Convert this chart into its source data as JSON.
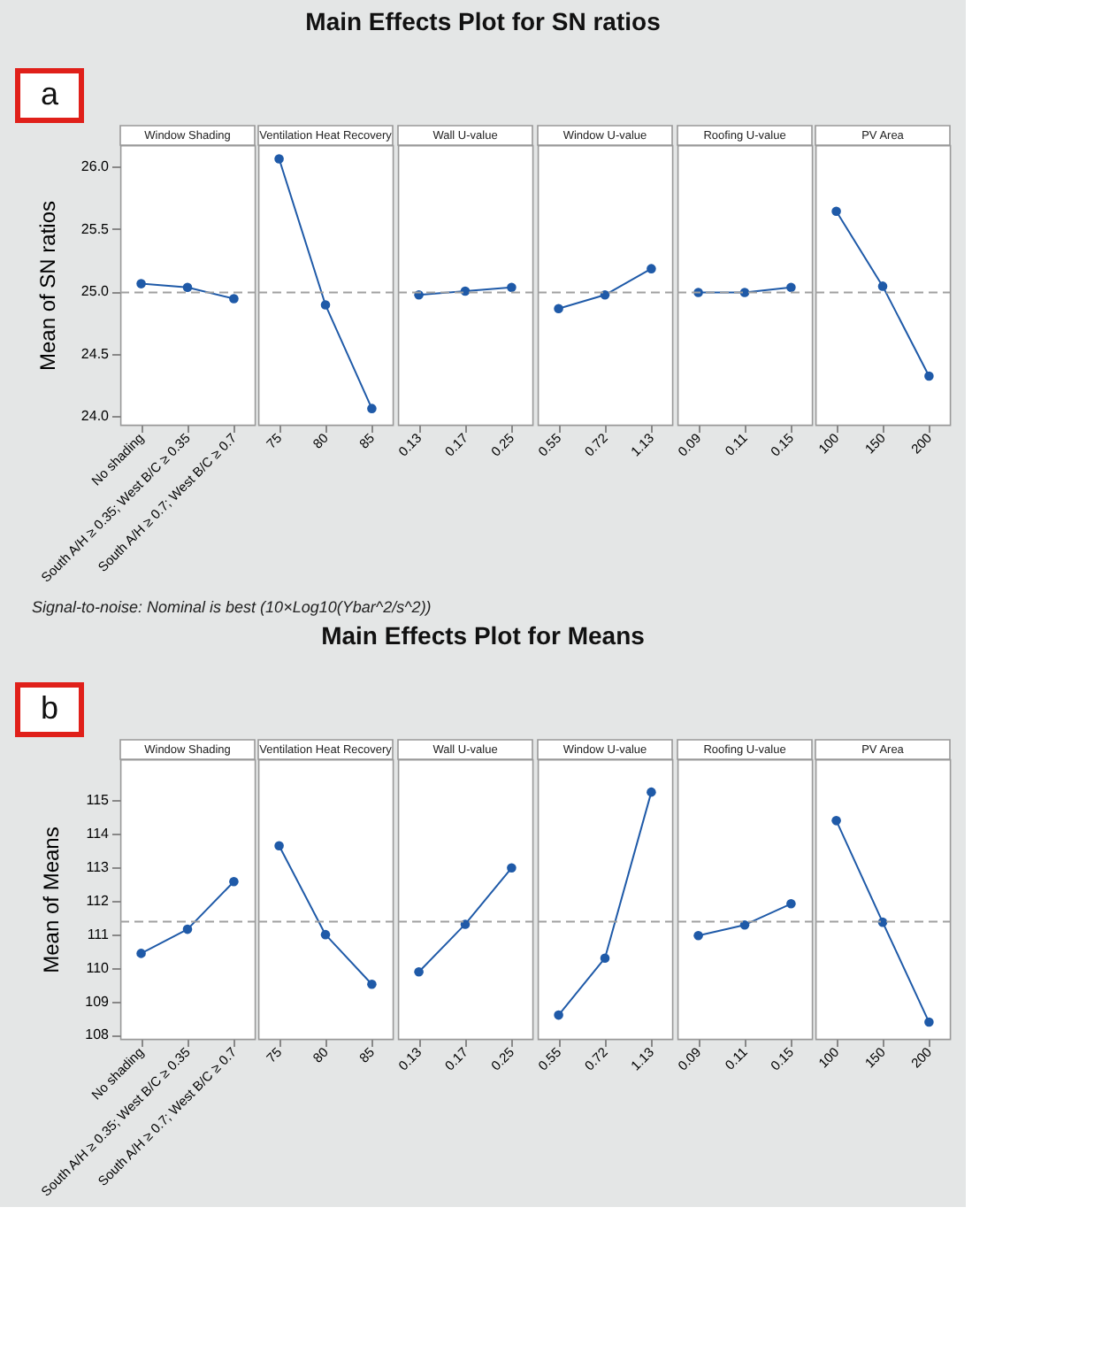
{
  "chart_data": [
    {
      "type": "line",
      "title": "Window Shading",
      "ylabel": "Mean of SN ratios",
      "annotations": [
        "a",
        "Main Effects Plot for SN ratios",
        "Signal-to-noise: Nominal is best (10×Log10(Ybar^2/s^2))"
      ],
      "categories": [
        "No shading",
        "South A/H ≥ 0.35; West B/C ≥ 0.35",
        "South A/H ≥ 0.7; West B/C ≥ 0.7"
      ],
      "values": [
        25.06,
        25.03,
        24.94
      ],
      "color": "#1f5aa8",
      "marker": "circle",
      "ylim": [
        23.93,
        26.17
      ],
      "yticks": [
        {
          "value": 24,
          "label": "24.0"
        },
        {
          "value": 24.5,
          "label": "24.5"
        },
        {
          "value": 25,
          "label": "25.0"
        },
        {
          "value": 25.5,
          "label": "25.5"
        },
        {
          "value": 26,
          "label": "26.0"
        }
      ],
      "ref_lines": [
        {
          "axis": "y",
          "value": 24.99,
          "line_style": "dashed",
          "color": "#a0a0a0"
        }
      ]
    },
    {
      "type": "line",
      "title": "Ventilation Heat Recovery",
      "categories": [
        "75",
        "80",
        "85"
      ],
      "values": [
        26.06,
        24.89,
        24.06
      ],
      "color": "#1f5aa8",
      "marker": "circle",
      "ylim": [
        23.93,
        26.17
      ],
      "tick_labels": "x",
      "ref_lines": [
        {
          "axis": "y",
          "value": 24.99,
          "line_style": "dashed",
          "color": "#a0a0a0"
        }
      ]
    },
    {
      "type": "line",
      "title": "Wall U-value",
      "categories": [
        "0.13",
        "0.17",
        "0.25"
      ],
      "values": [
        24.97,
        25.0,
        25.03
      ],
      "color": "#1f5aa8",
      "marker": "circle",
      "ylim": [
        23.93,
        26.17
      ],
      "tick_labels": "x",
      "ref_lines": [
        {
          "axis": "y",
          "value": 24.99,
          "line_style": "dashed",
          "color": "#a0a0a0"
        }
      ]
    },
    {
      "type": "line",
      "title": "Window U-value",
      "categories": [
        "0.55",
        "0.72",
        "1.13"
      ],
      "values": [
        24.86,
        24.97,
        25.18
      ],
      "color": "#1f5aa8",
      "marker": "circle",
      "ylim": [
        23.93,
        26.17
      ],
      "tick_labels": "x",
      "ref_lines": [
        {
          "axis": "y",
          "value": 24.99,
          "line_style": "dashed",
          "color": "#a0a0a0"
        }
      ]
    },
    {
      "type": "line",
      "title": "Roofing U-value",
      "categories": [
        "0.09",
        "0.11",
        "0.15"
      ],
      "values": [
        24.99,
        24.99,
        25.03
      ],
      "color": "#1f5aa8",
      "marker": "circle",
      "ylim": [
        23.93,
        26.17
      ],
      "tick_labels": "x",
      "ref_lines": [
        {
          "axis": "y",
          "value": 24.99,
          "line_style": "dashed",
          "color": "#a0a0a0"
        }
      ]
    },
    {
      "type": "line",
      "title": "PV Area",
      "categories": [
        "100",
        "150",
        "200"
      ],
      "values": [
        25.64,
        25.04,
        24.32
      ],
      "color": "#1f5aa8",
      "marker": "circle",
      "ylim": [
        23.93,
        26.17
      ],
      "tick_labels": "x",
      "ref_lines": [
        {
          "axis": "y",
          "value": 24.99,
          "line_style": "dashed",
          "color": "#a0a0a0"
        }
      ]
    },
    {
      "type": "line",
      "title": "Window Shading",
      "ylabel": "Mean of Means",
      "annotations": [
        "b",
        "Main Effects Plot for Means"
      ],
      "categories": [
        "No shading",
        "South A/H ≥ 0.35; West B/C ≥ 0.35",
        "South A/H ≥ 0.7; West B/C ≥ 0.7"
      ],
      "values": [
        110.43,
        111.15,
        112.57
      ],
      "color": "#1f5aa8",
      "marker": "circle",
      "ylim": [
        107.88,
        116.22
      ],
      "yticks": [
        108,
        109,
        110,
        111,
        112,
        113,
        114,
        115
      ],
      "ref_lines": [
        {
          "axis": "y",
          "value": 111.38,
          "line_style": "dashed",
          "color": "#a0a0a0"
        }
      ]
    },
    {
      "type": "line",
      "title": "Ventilation Heat Recovery",
      "categories": [
        "75",
        "80",
        "85"
      ],
      "values": [
        113.64,
        110.99,
        109.51
      ],
      "color": "#1f5aa8",
      "marker": "circle",
      "ylim": [
        107.88,
        116.22
      ],
      "tick_labels": "x",
      "ref_lines": [
        {
          "axis": "y",
          "value": 111.38,
          "line_style": "dashed",
          "color": "#a0a0a0"
        }
      ]
    },
    {
      "type": "line",
      "title": "Wall U-value",
      "categories": [
        "0.13",
        "0.17",
        "0.25"
      ],
      "values": [
        109.88,
        111.3,
        112.98
      ],
      "color": "#1f5aa8",
      "marker": "circle",
      "ylim": [
        107.88,
        116.22
      ],
      "tick_labels": "x",
      "ref_lines": [
        {
          "axis": "y",
          "value": 111.38,
          "line_style": "dashed",
          "color": "#a0a0a0"
        }
      ]
    },
    {
      "type": "line",
      "title": "Window U-value",
      "categories": [
        "0.55",
        "0.72",
        "1.13"
      ],
      "values": [
        108.59,
        110.29,
        115.24
      ],
      "color": "#1f5aa8",
      "marker": "circle",
      "ylim": [
        107.88,
        116.22
      ],
      "tick_labels": "x",
      "ref_lines": [
        {
          "axis": "y",
          "value": 111.38,
          "line_style": "dashed",
          "color": "#a0a0a0"
        }
      ]
    },
    {
      "type": "line",
      "title": "Roofing U-value",
      "categories": [
        "0.09",
        "0.11",
        "0.15"
      ],
      "values": [
        110.96,
        111.28,
        111.91
      ],
      "color": "#1f5aa8",
      "marker": "circle",
      "ylim": [
        107.88,
        116.22
      ],
      "tick_labels": "x",
      "ref_lines": [
        {
          "axis": "y",
          "value": 111.38,
          "line_style": "dashed",
          "color": "#a0a0a0"
        }
      ]
    },
    {
      "type": "line",
      "title": "PV Area",
      "categories": [
        "100",
        "150",
        "200"
      ],
      "values": [
        114.39,
        111.36,
        108.38
      ],
      "color": "#1f5aa8",
      "marker": "circle",
      "ylim": [
        107.88,
        116.22
      ],
      "tick_labels": "x",
      "ref_lines": [
        {
          "axis": "y",
          "value": 111.38,
          "line_style": "dashed",
          "color": "#a0a0a0"
        }
      ]
    }
  ]
}
